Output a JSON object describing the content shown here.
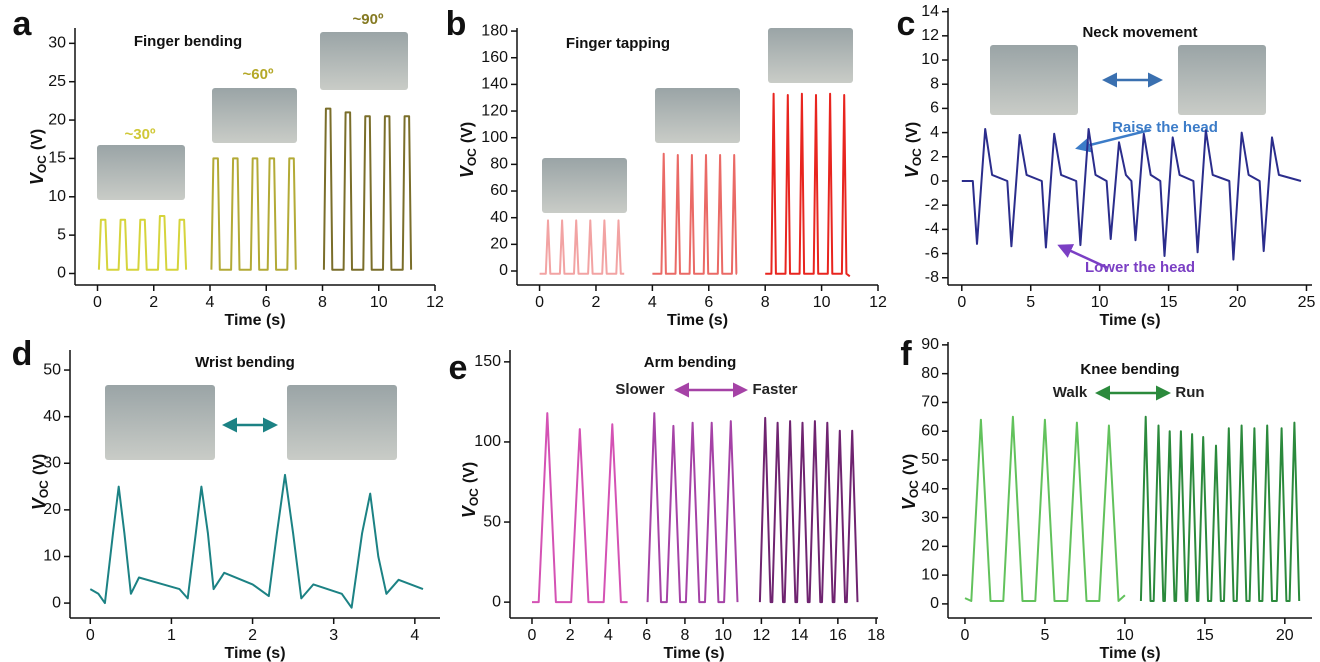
{
  "chart_data": [
    {
      "type": "line",
      "label": "a",
      "title": "Finger bending",
      "xlabel": "Time (s)",
      "ylabel": [
        "V",
        "OC",
        "(V)"
      ],
      "xlim": [
        -0.8,
        12
      ],
      "ylim": [
        -1.5,
        32
      ],
      "xticks": [
        0,
        2,
        4,
        6,
        8,
        10,
        12
      ],
      "yticks": [
        0,
        5,
        10,
        15,
        20,
        25,
        30
      ],
      "annotations": [
        {
          "text": "~30º",
          "color": "#d0c838"
        },
        {
          "text": "~60º",
          "color": "#b4a828"
        },
        {
          "text": "~90º",
          "color": "#857a22"
        }
      ],
      "series": [
        {
          "color": "#d6d43c",
          "x": [
            0.05,
            0.12,
            0.28,
            0.35,
            0.75,
            0.82,
            0.98,
            1.05,
            1.45,
            1.52,
            1.68,
            1.75,
            2.15,
            2.22,
            2.38,
            2.45,
            2.85,
            2.92,
            3.08,
            3.15
          ],
          "values": [
            0.5,
            7,
            7,
            0.5,
            0.5,
            7,
            7,
            0.5,
            0.5,
            7,
            7,
            0.5,
            0.5,
            7.5,
            7.5,
            0.5,
            0.5,
            7,
            7,
            0.5
          ]
        },
        {
          "color": "#b3aa36",
          "x": [
            4.05,
            4.12,
            4.28,
            4.35,
            4.75,
            4.82,
            4.98,
            5.05,
            5.45,
            5.52,
            5.68,
            5.75,
            6.05,
            6.12,
            6.28,
            6.35,
            6.75,
            6.82,
            6.98,
            7.05
          ],
          "values": [
            0.5,
            15,
            15,
            0.5,
            0.5,
            15,
            15,
            0.5,
            0.5,
            15,
            15,
            0.5,
            0.5,
            15,
            15,
            0.5,
            0.5,
            15,
            15,
            0.5
          ]
        },
        {
          "color": "#7a6e2a",
          "x": [
            8.05,
            8.12,
            8.28,
            8.35,
            8.75,
            8.82,
            8.98,
            9.05,
            9.45,
            9.52,
            9.68,
            9.75,
            10.15,
            10.22,
            10.38,
            10.45,
            10.85,
            10.92,
            11.08,
            11.15
          ],
          "values": [
            0.5,
            21.5,
            21.5,
            0.5,
            0.5,
            21,
            21,
            0.5,
            0.5,
            20.5,
            20.5,
            0.5,
            0.5,
            20.5,
            20.5,
            0.5,
            0.5,
            20.5,
            20.5,
            0.5
          ]
        }
      ]
    },
    {
      "type": "line",
      "label": "b",
      "title": "Finger tapping",
      "xlabel": "Time (s)",
      "ylabel": [
        "V",
        "OC",
        "(V)"
      ],
      "xlim": [
        -0.8,
        12
      ],
      "ylim": [
        -10.5,
        182.3
      ],
      "xticks": [
        0,
        2,
        4,
        6,
        8,
        10,
        12
      ],
      "yticks": [
        0,
        20,
        40,
        60,
        80,
        100,
        120,
        140,
        160,
        180
      ],
      "annotations": [],
      "series": [
        {
          "color": "#f2a3a3",
          "x": [
            0,
            0.22,
            0.3,
            0.38,
            0.72,
            0.8,
            0.88,
            1.22,
            1.3,
            1.38,
            1.72,
            1.8,
            1.88,
            2.22,
            2.3,
            2.38,
            2.72,
            2.8,
            2.88,
            3.0
          ],
          "values": [
            -2,
            -2,
            38,
            -2,
            -2,
            38,
            -2,
            -2,
            38,
            -2,
            -2,
            38,
            -2,
            -2,
            38,
            -2,
            -2,
            38,
            -2,
            -2
          ]
        },
        {
          "color": "#ea6a66",
          "x": [
            4.0,
            4.32,
            4.4,
            4.48,
            4.82,
            4.9,
            4.98,
            5.32,
            5.4,
            5.48,
            5.82,
            5.9,
            5.98,
            6.32,
            6.4,
            6.48,
            6.82,
            6.9,
            6.98,
            7.0
          ],
          "values": [
            -2,
            -2,
            88,
            -2,
            -2,
            87,
            -2,
            -2,
            87,
            -2,
            -2,
            87,
            -2,
            -2,
            87,
            -2,
            -2,
            87,
            -2,
            -2
          ]
        },
        {
          "color": "#e8251f",
          "x": [
            8.0,
            8.22,
            8.3,
            8.38,
            8.72,
            8.8,
            8.88,
            9.22,
            9.3,
            9.38,
            9.72,
            9.8,
            9.88,
            10.22,
            10.3,
            10.38,
            10.72,
            10.8,
            10.88,
            11.0
          ],
          "values": [
            -2,
            -2,
            133,
            -2,
            -2,
            132,
            -2,
            -2,
            133,
            -2,
            -2,
            132,
            -2,
            -2,
            133,
            -2,
            -2,
            132,
            -2,
            -4
          ]
        }
      ]
    },
    {
      "type": "line",
      "label": "c",
      "title": "Neck movement",
      "xlabel": "Time (s)",
      "ylabel": [
        "V",
        "OC",
        "(V)"
      ],
      "xlim": [
        -1.0,
        25.4
      ],
      "ylim": [
        -8.6,
        14.3
      ],
      "xticks": [
        0,
        5,
        10,
        15,
        20,
        25
      ],
      "yticks": [
        -8,
        -6,
        -4,
        -2,
        0,
        2,
        4,
        6,
        8,
        10,
        12,
        14
      ],
      "annotations": [
        {
          "text": "Raise the head",
          "color": "#3c7cc8"
        },
        {
          "text": "Lower the head",
          "color": "#7b3fc4"
        }
      ],
      "series": [
        {
          "color": "#2b2d8c",
          "x": [
            0,
            0.8,
            1.1,
            1.7,
            2.2,
            3.3,
            3.6,
            4.2,
            4.7,
            5.8,
            6.1,
            6.7,
            7.2,
            8.3,
            8.6,
            9.2,
            9.7,
            10.5,
            10.8,
            11.4,
            11.9,
            12.3,
            12.6,
            13.2,
            13.7,
            14.4,
            14.7,
            15.3,
            15.8,
            16.8,
            17.1,
            17.7,
            18.2,
            19.4,
            19.7,
            20.3,
            20.8,
            21.6,
            21.9,
            22.5,
            23.0,
            24.6
          ],
          "values": [
            0,
            0,
            -5.2,
            4.3,
            0.5,
            0,
            -5.4,
            3.8,
            0.5,
            0,
            -5.5,
            3.9,
            0.5,
            0,
            -5.3,
            4.3,
            0.5,
            0,
            -4.8,
            3.2,
            0.5,
            0,
            -4.9,
            3.9,
            0.5,
            0,
            -6.2,
            3.6,
            0.5,
            0,
            -5.9,
            4.2,
            0.5,
            0,
            -6.5,
            4.0,
            0.5,
            0,
            -5.8,
            3.6,
            0.5,
            0
          ]
        }
      ]
    },
    {
      "type": "line",
      "label": "d",
      "title": "Wrist bending",
      "xlabel": "Time (s)",
      "ylabel": [
        "V",
        "OC",
        "(V)"
      ],
      "xlim": [
        -0.25,
        4.31
      ],
      "ylim": [
        -3.2,
        54.3
      ],
      "xticks": [
        0,
        1,
        2,
        3,
        4
      ],
      "yticks": [
        0,
        10,
        20,
        30,
        40,
        50
      ],
      "annotations": [],
      "series": [
        {
          "color": "#1c8284",
          "x": [
            0,
            0.1,
            0.18,
            0.28,
            0.35,
            0.42,
            0.5,
            0.6,
            0.9,
            1.1,
            1.2,
            1.3,
            1.37,
            1.45,
            1.52,
            1.65,
            2.0,
            2.2,
            2.3,
            2.4,
            2.5,
            2.6,
            2.75,
            3.1,
            3.22,
            3.35,
            3.45,
            3.55,
            3.65,
            3.8,
            4.1
          ],
          "values": [
            3,
            2,
            0,
            15,
            25,
            15,
            2,
            5.5,
            4,
            3,
            1,
            15,
            25,
            15,
            3,
            6.5,
            4,
            1.5,
            15,
            27.5,
            15,
            1,
            4,
            2,
            -1,
            15,
            23.5,
            10,
            2,
            5,
            3
          ]
        }
      ]
    },
    {
      "type": "line",
      "label": "e",
      "title": "Arm bending",
      "xlabel": "Time (s)",
      "ylabel": [
        "V",
        "OC",
        "(V)"
      ],
      "xlim": [
        -1.15,
        18.1
      ],
      "ylim": [
        -9.9,
        157.4
      ],
      "xticks": [
        0,
        2,
        4,
        6,
        8,
        10,
        12,
        14,
        16,
        18
      ],
      "yticks": [
        0,
        50,
        100,
        150
      ],
      "annotations": [
        {
          "text": "Slower",
          "color": "#222222"
        },
        {
          "text": "Faster",
          "color": "#222222"
        }
      ],
      "series": [
        {
          "color": "#d452b4",
          "x": [
            0,
            0.35,
            0.8,
            1.25,
            2.05,
            2.5,
            2.95,
            3.75,
            4.2,
            4.65,
            5.0
          ],
          "values": [
            0,
            0,
            118,
            0,
            0,
            108,
            0,
            0,
            111,
            0,
            0
          ]
        },
        {
          "color": "#a542a6",
          "x": [
            6.05,
            6.4,
            6.75,
            7.05,
            7.4,
            7.75,
            8.05,
            8.4,
            8.75,
            9.05,
            9.4,
            9.75,
            10.05,
            10.4,
            10.75
          ],
          "values": [
            0,
            118,
            0,
            0,
            110,
            0,
            0,
            112,
            0,
            0,
            112,
            0,
            0,
            113,
            0
          ]
        },
        {
          "color": "#6f2470",
          "x": [
            11.92,
            12.2,
            12.48,
            12.57,
            12.85,
            13.13,
            13.22,
            13.5,
            13.78,
            13.87,
            14.15,
            14.43,
            14.52,
            14.8,
            15.08,
            15.17,
            15.45,
            15.73,
            15.82,
            16.1,
            16.38,
            16.47,
            16.75,
            17.03
          ],
          "values": [
            0,
            115,
            0,
            0,
            112,
            0,
            0,
            113,
            0,
            0,
            112,
            0,
            0,
            113,
            0,
            0,
            112,
            0,
            0,
            107,
            0,
            0,
            107,
            0
          ]
        }
      ]
    },
    {
      "type": "line",
      "label": "f",
      "title": "Knee bending",
      "xlabel": "Time (s)",
      "ylabel": [
        "V",
        "OC",
        "(V)"
      ],
      "xlim": [
        -1.06,
        21.7
      ],
      "ylim": [
        -4.9,
        91
      ],
      "xticks": [
        0,
        5,
        10,
        15,
        20
      ],
      "yticks": [
        0,
        10,
        20,
        30,
        40,
        50,
        60,
        70,
        80,
        90
      ],
      "annotations": [
        {
          "text": "Walk",
          "color": "#222222"
        },
        {
          "text": "Run",
          "color": "#222222"
        }
      ],
      "series": [
        {
          "color": "#62c25c",
          "x": [
            0,
            0.4,
            1,
            1.6,
            2.4,
            3,
            3.6,
            4.4,
            5,
            5.6,
            6.4,
            7,
            7.6,
            8.4,
            9,
            9.6,
            10
          ],
          "values": [
            2,
            1,
            64,
            1,
            1,
            65,
            1,
            1,
            64,
            1,
            1,
            63,
            1,
            1,
            62,
            1,
            3
          ]
        },
        {
          "color": "#2b8a3c",
          "x": [
            11.0,
            11.3,
            11.6,
            11.8,
            12.1,
            12.4,
            12.5,
            12.8,
            13.1,
            13.2,
            13.5,
            13.8,
            13.9,
            14.2,
            14.5,
            14.6,
            14.9,
            15.2,
            15.4,
            15.7,
            16.0,
            16.2,
            16.5,
            16.8,
            17.0,
            17.3,
            17.6,
            17.8,
            18.1,
            18.4,
            18.6,
            18.9,
            19.2,
            19.5,
            19.8,
            20.1,
            20.3,
            20.6,
            20.9
          ],
          "values": [
            1,
            65,
            1,
            1,
            62,
            1,
            1,
            60,
            1,
            1,
            60,
            1,
            1,
            59,
            1,
            1,
            58,
            1,
            1,
            55,
            1,
            1,
            61,
            1,
            1,
            62,
            1,
            1,
            61,
            1,
            1,
            62,
            1,
            1,
            61,
            1,
            1,
            63,
            1
          ]
        }
      ]
    }
  ]
}
